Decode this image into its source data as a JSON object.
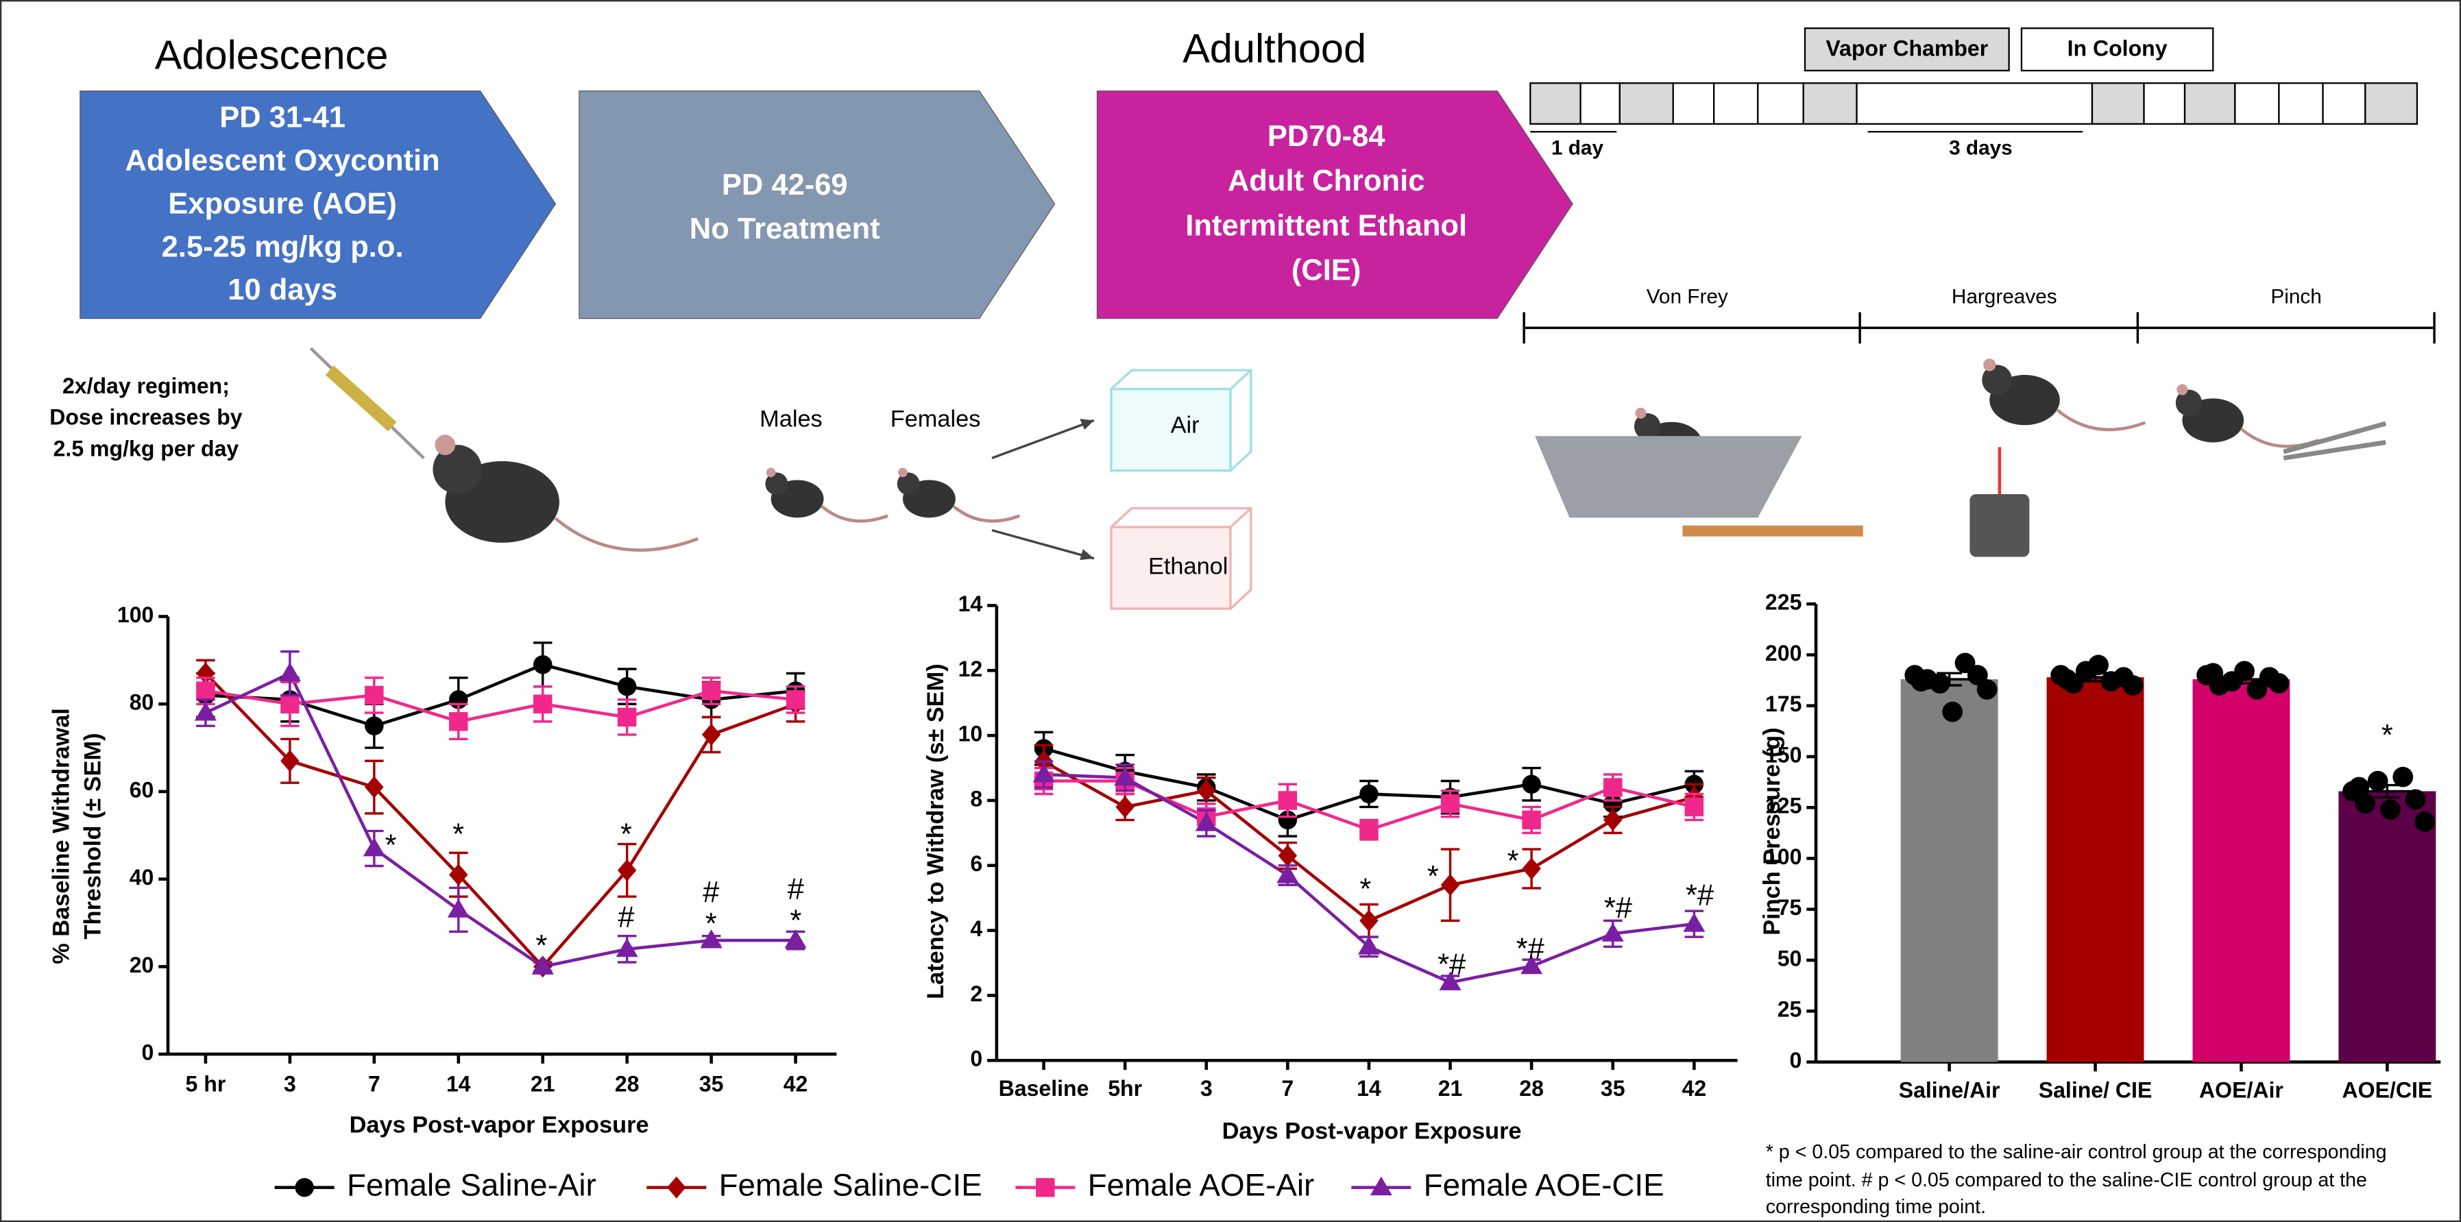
{
  "diagram": {
    "stages": [
      {
        "heading": "Adolescence",
        "lines": [
          "PD 31-41",
          "Adolescent Oxycontin",
          "Exposure (AOE)",
          "2.5-25 mg/kg p.o.",
          "10 days"
        ],
        "color": "#4472c4"
      },
      {
        "lines": [
          "PD 42-69",
          "No Treatment"
        ],
        "color": "#8497b0"
      },
      {
        "heading": "Adulthood",
        "lines": [
          "PD70-84",
          "Adult Chronic",
          "Intermittent Ethanol",
          "(CIE)"
        ],
        "color": "#c8229f"
      }
    ],
    "regimen": [
      "2x/day regimen;",
      "Dose increases by",
      "2.5 mg/kg per day"
    ],
    "groups": [
      "Males",
      "Females"
    ],
    "conditions": [
      "Air",
      "Ethanol"
    ],
    "schedule": {
      "legend": [
        "Vapor Chamber",
        "In Colony"
      ],
      "spans": [
        "1 day",
        "3 days"
      ]
    },
    "tests": [
      "Von Frey",
      "Hargreaves",
      "Pinch"
    ]
  },
  "chart_data": [
    {
      "type": "line",
      "xlabel": "Days Post-vapor Exposure",
      "ylabel": [
        "% Baseline  Withdrawal",
        "Threshold (± SEM)"
      ],
      "categories": [
        "5 hr",
        "3",
        "7",
        "14",
        "21",
        "28",
        "35",
        "42"
      ],
      "ylim": [
        0,
        100
      ],
      "yticks": [
        0,
        20,
        40,
        60,
        80,
        100
      ],
      "series": [
        {
          "name": "Female Saline-Air",
          "color": "#000000",
          "marker": "circle",
          "values": [
            82,
            81,
            75,
            81,
            89,
            84,
            81,
            83
          ],
          "errors": [
            5,
            5,
            5,
            5,
            5,
            4,
            4,
            4
          ]
        },
        {
          "name": "Female Saline-CIE",
          "color": "#a50000",
          "marker": "diamond",
          "values": [
            87,
            67,
            61,
            41,
            20,
            42,
            73,
            80
          ],
          "errors": [
            3,
            5,
            6,
            5,
            1,
            6,
            4,
            4
          ]
        },
        {
          "name": "Female AOE-Air",
          "color": "#f0288c",
          "marker": "square",
          "values": [
            83,
            80,
            82,
            76,
            80,
            77,
            83,
            81
          ],
          "errors": [
            3,
            5,
            4,
            4,
            4,
            4,
            3,
            3
          ]
        },
        {
          "name": "Female AOE-CIE",
          "color": "#7a1fa2",
          "marker": "triangle",
          "values": [
            78,
            87,
            47,
            33,
            20,
            24,
            26,
            26
          ],
          "errors": [
            3,
            5,
            4,
            5,
            1,
            3,
            1,
            2
          ]
        }
      ],
      "annotations": [
        "*",
        "*",
        "*",
        "*",
        "#",
        "#",
        "*",
        "#",
        "*"
      ]
    },
    {
      "type": "line",
      "xlabel": "Days Post-vapor Exposure",
      "ylabel": [
        "Latency to Withdraw (s± SEM)"
      ],
      "categories": [
        "Baseline",
        "5hr",
        "3",
        "7",
        "14",
        "21",
        "28",
        "35",
        "42"
      ],
      "ylim": [
        0,
        14
      ],
      "yticks": [
        0,
        2,
        4,
        6,
        8,
        10,
        12,
        14
      ],
      "series": [
        {
          "color": "#000000",
          "marker": "circle",
          "values": [
            9.6,
            8.9,
            8.4,
            7.4,
            8.2,
            8.1,
            8.5,
            7.9,
            8.5
          ],
          "errors": [
            0.5,
            0.5,
            0.4,
            0.5,
            0.4,
            0.5,
            0.5,
            0.4,
            0.4
          ]
        },
        {
          "color": "#a50000",
          "marker": "diamond",
          "values": [
            9.2,
            7.8,
            8.3,
            6.3,
            4.3,
            5.4,
            5.9,
            7.4,
            8.1
          ],
          "errors": [
            0.5,
            0.4,
            0.4,
            0.4,
            0.5,
            1.1,
            0.6,
            0.4,
            0.4
          ]
        },
        {
          "color": "#f0288c",
          "marker": "square",
          "values": [
            8.6,
            8.6,
            7.5,
            8.0,
            7.1,
            7.9,
            7.4,
            8.4,
            7.8
          ],
          "errors": [
            0.4,
            0.4,
            0.4,
            0.5,
            0.3,
            0.4,
            0.4,
            0.4,
            0.4
          ]
        },
        {
          "color": "#7a1fa2",
          "marker": "triangle",
          "values": [
            8.8,
            8.7,
            7.3,
            5.7,
            3.5,
            2.4,
            2.9,
            3.9,
            4.2
          ],
          "errors": [
            0.4,
            0.4,
            0.4,
            0.3,
            0.3,
            0.2,
            0.2,
            0.4,
            0.4
          ]
        }
      ],
      "annotations": [
        "*",
        "*",
        "*",
        "*#",
        "*#",
        "*#",
        "*#"
      ]
    },
    {
      "type": "bar",
      "ylabel": [
        "Pinch  Pressure (g)"
      ],
      "categories": [
        "Saline/Air",
        "Saline/ CIE",
        "AOE/Air",
        "AOE/CIE"
      ],
      "values": [
        188,
        189,
        188,
        133
      ],
      "errors": [
        3,
        2,
        2,
        3
      ],
      "colors": [
        "#808080",
        "#a50000",
        "#d4006a",
        "#5c0048"
      ],
      "points": [
        [
          190,
          188,
          186,
          172,
          196,
          190,
          183,
          187
        ],
        [
          190,
          186,
          192,
          195,
          187,
          189,
          185,
          188
        ],
        [
          190,
          185,
          187,
          192,
          183,
          189,
          186,
          191
        ],
        [
          133,
          127,
          138,
          124,
          140,
          129,
          118,
          135
        ]
      ],
      "ylim": [
        0,
        225
      ],
      "yticks": [
        0,
        25,
        50,
        75,
        100,
        125,
        150,
        175,
        200,
        225
      ],
      "annotations": [
        "*"
      ]
    }
  ],
  "footnote": [
    "* p < 0.05 compared to the saline-air control group at the corresponding",
    "time point. # p < 0.05 compared to the saline-CIE control group at the",
    "corresponding time point."
  ]
}
